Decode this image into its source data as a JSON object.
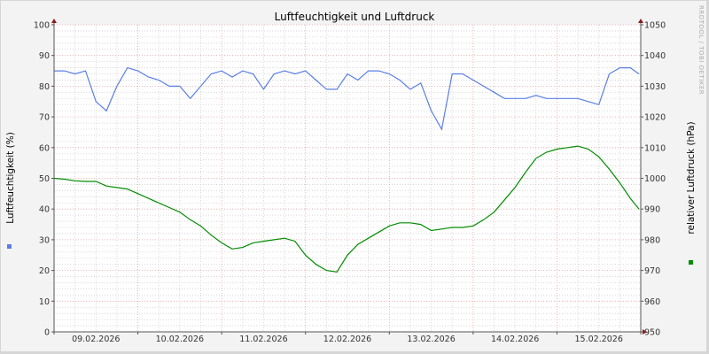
{
  "chart_data": {
    "type": "line",
    "title": "Luftfeuchtigkeit und Luftdruck",
    "ylabel": "Luftfeuchtigkeit (%)",
    "y2label": "relativer Luftdruck (hPa)",
    "watermark": "RRDTOOL / TOBI OETIKER",
    "ylim": [
      0,
      100
    ],
    "y2lim": [
      950,
      1050
    ],
    "yticks": [
      0,
      10,
      20,
      30,
      40,
      50,
      60,
      70,
      80,
      90,
      100
    ],
    "y2ticks": [
      950,
      960,
      970,
      980,
      990,
      1000,
      1010,
      1020,
      1030,
      1040,
      1050
    ],
    "xticklabels": [
      "09.02.2026",
      "10.02.2026",
      "11.02.2026",
      "12.02.2026",
      "13.02.2026",
      "14.02.2026",
      "15.02.2026"
    ],
    "xlim": [
      "09.02.2026 00:00",
      "16.02.2026 00:00"
    ],
    "grid": true,
    "legend": "side",
    "x": [
      "09.02 00:00",
      "09.02 03:00",
      "09.02 06:00",
      "09.02 09:00",
      "09.02 12:00",
      "09.02 15:00",
      "09.02 18:00",
      "09.02 21:00",
      "10.02 00:00",
      "10.02 03:00",
      "10.02 06:00",
      "10.02 09:00",
      "10.02 12:00",
      "10.02 15:00",
      "10.02 18:00",
      "10.02 21:00",
      "11.02 00:00",
      "11.02 03:00",
      "11.02 06:00",
      "11.02 09:00",
      "11.02 12:00",
      "11.02 15:00",
      "11.02 18:00",
      "11.02 21:00",
      "12.02 00:00",
      "12.02 03:00",
      "12.02 06:00",
      "12.02 09:00",
      "12.02 12:00",
      "12.02 15:00",
      "12.02 18:00",
      "12.02 21:00",
      "13.02 00:00",
      "13.02 03:00",
      "13.02 06:00",
      "13.02 09:00",
      "13.02 12:00",
      "13.02 15:00",
      "13.02 18:00",
      "13.02 21:00",
      "14.02 00:00",
      "14.02 03:00",
      "14.02 06:00",
      "14.02 09:00",
      "14.02 12:00",
      "14.02 15:00",
      "14.02 18:00",
      "14.02 21:00",
      "15.02 00:00",
      "15.02 03:00",
      "15.02 06:00",
      "15.02 09:00",
      "15.02 12:00",
      "15.02 15:00",
      "15.02 18:00",
      "15.02 21:00",
      "15.02 23:30"
    ],
    "series": [
      {
        "axis": "left",
        "color": "#5a7ee6",
        "values": [
          85,
          85,
          84,
          85,
          75,
          72,
          80,
          86,
          85,
          83,
          82,
          80,
          80,
          76,
          80,
          84,
          85,
          83,
          85,
          84,
          79,
          84,
          85,
          84,
          85,
          82,
          79,
          79,
          84,
          82,
          85,
          85,
          84,
          82,
          79,
          81,
          72,
          66,
          84,
          84,
          82,
          80,
          78,
          76,
          76,
          76,
          77,
          76,
          76,
          76,
          76,
          75,
          74,
          84,
          86,
          86,
          84
        ]
      },
      {
        "axis": "right",
        "color": "#008c00",
        "values": [
          1000,
          999.7,
          999.2,
          999,
          999,
          997.5,
          997,
          996.5,
          995,
          993.5,
          992,
          990.5,
          989,
          986.5,
          984.5,
          981.5,
          979,
          977,
          977.5,
          979,
          979.5,
          980,
          980.5,
          979.5,
          975,
          972,
          970,
          969.5,
          975,
          978.5,
          980.5,
          982.5,
          984.5,
          985.5,
          985.5,
          985,
          983,
          983.5,
          984,
          984,
          984.5,
          986.5,
          989,
          993,
          997,
          1002,
          1006.5,
          1008.5,
          1009.5,
          1010,
          1010.5,
          1009.5,
          1007,
          1003,
          998.5,
          993.5,
          990
        ]
      }
    ]
  }
}
